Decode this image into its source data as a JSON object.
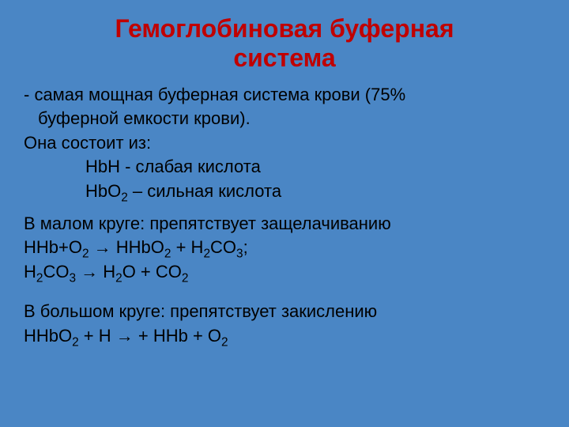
{
  "colors": {
    "background": "#4a86c5",
    "title": "#c00000",
    "body_text": "#000000"
  },
  "typography": {
    "title_fontsize": 32,
    "body_fontsize": 22,
    "font_family": "Arial"
  },
  "title_line1": "Гемоглобиновая буферная",
  "title_line2": "система",
  "line1a": "- самая мощная буферная система крови (75%",
  "line1b": "буферной емкости крови).",
  "line2": "Она состоит из:",
  "line3": "HbH - слабая кислота",
  "line4_a": "HbO",
  "line4_b": " – сильная кислота",
  "line5": "В малом круге: препятствует защелачиванию",
  "eq1_a": "НHb+O",
  "eq1_b": " → HHbO",
  "eq1_c": " + H",
  "eq1_d": "CO",
  "eq1_e": ";",
  "eq2_a": "H",
  "eq2_b": "CO",
  "eq2_c": " → H",
  "eq2_d": "O + СO",
  "line6": "В большом круге: препятствует закислению",
  "eq3_a": "HHbO",
  "eq3_b": " + H → + HHb + O",
  "sub2": "2",
  "sub3": "3"
}
